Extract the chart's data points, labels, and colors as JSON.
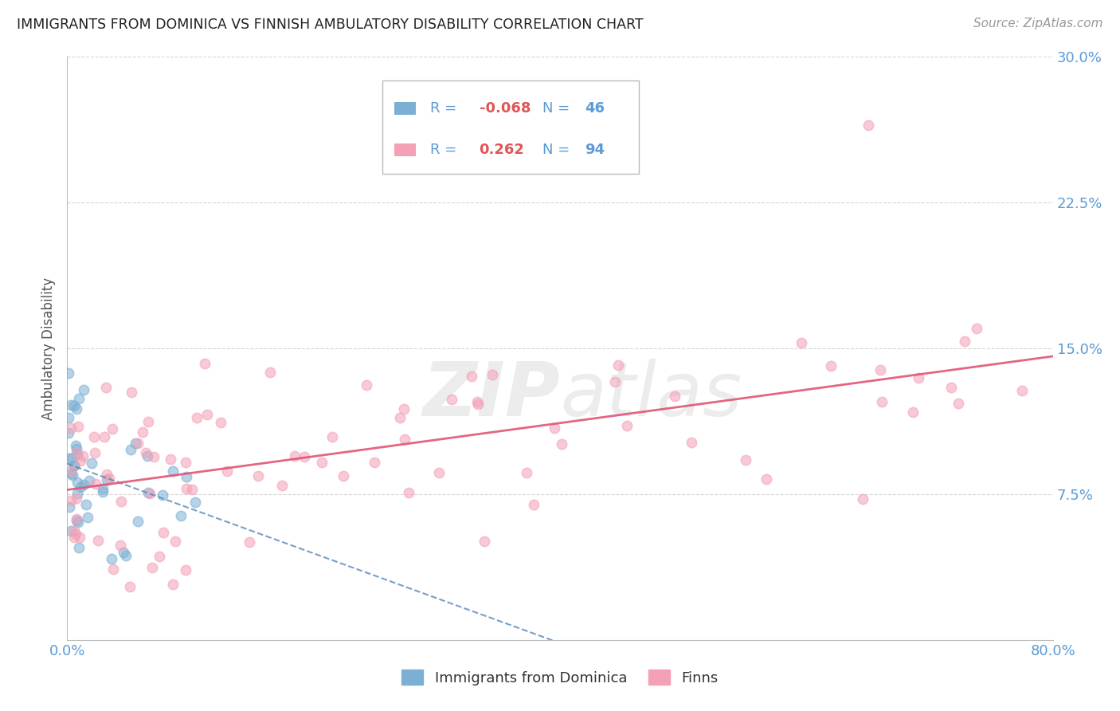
{
  "title": "IMMIGRANTS FROM DOMINICA VS FINNISH AMBULATORY DISABILITY CORRELATION CHART",
  "source": "Source: ZipAtlas.com",
  "ylabel": "Ambulatory Disability",
  "x_min": 0.0,
  "x_max": 0.8,
  "y_min": 0.0,
  "y_max": 0.3,
  "y_ticks": [
    0.075,
    0.15,
    0.225,
    0.3
  ],
  "y_tick_labels": [
    "7.5%",
    "15.0%",
    "22.5%",
    "30.0%"
  ],
  "series1_R": -0.068,
  "series1_N": 46,
  "series2_R": 0.262,
  "series2_N": 94,
  "blue_scatter_color": "#7bafd4",
  "pink_scatter_color": "#f4a0b5",
  "blue_line_color": "#5588bb",
  "pink_line_color": "#e05575",
  "background_color": "#ffffff",
  "grid_color": "#cccccc",
  "title_color": "#222222",
  "axis_label_color": "#555555",
  "tick_label_color": "#5b9bd5",
  "watermark_color": "#ececec",
  "r_value_color": "#e05555",
  "legend_box_color": "#dddddd"
}
